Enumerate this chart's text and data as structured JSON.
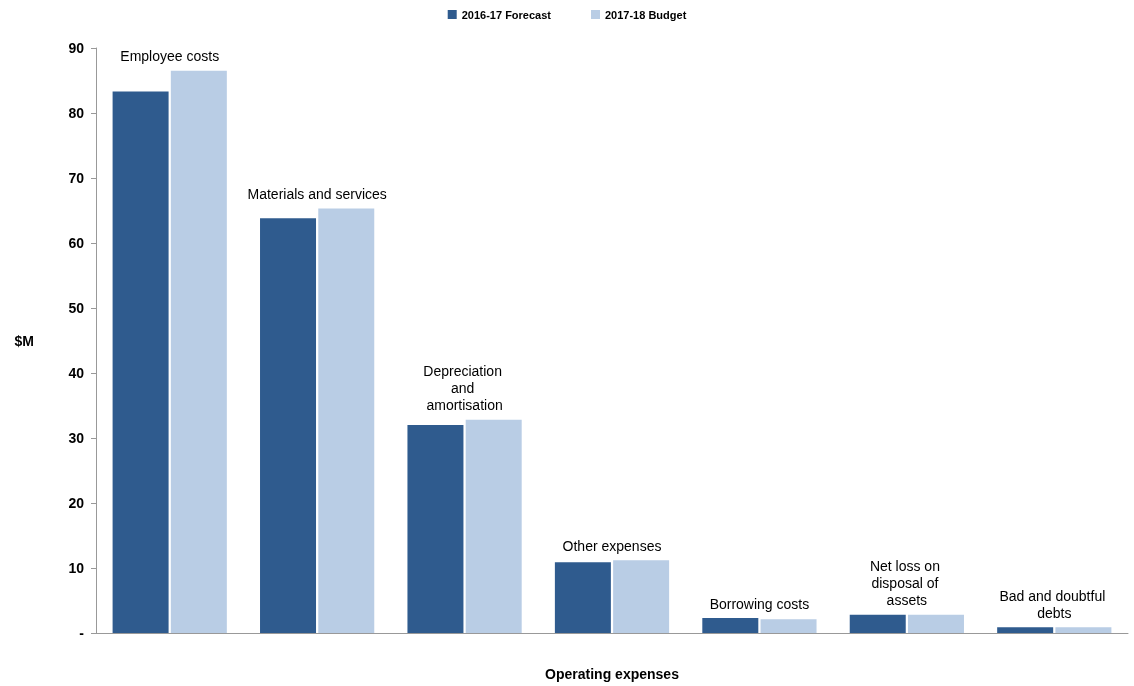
{
  "chart_data": {
    "type": "bar",
    "xlabel": "Operating expenses",
    "ylabel": "$M",
    "categories": [
      "Employee costs",
      "Materials and services",
      "Depreciation and amortisation",
      "Other expenses",
      "Borrowing costs",
      "Net loss on disposal of assets",
      "Bad and doubtful debts"
    ],
    "series": [
      {
        "name": "2016-17 Forecast",
        "color": "#2f5b8e",
        "values": [
          83.3,
          63.8,
          32.0,
          10.9,
          2.3,
          2.8,
          0.9
        ]
      },
      {
        "name": "2017-18 Budget",
        "color": "#b9cde5",
        "values": [
          86.5,
          65.3,
          32.8,
          11.2,
          2.1,
          2.8,
          0.9
        ]
      }
    ],
    "ylim": [
      0,
      90
    ],
    "yticks": [
      {
        "value": 0,
        "label": "-"
      },
      10,
      20,
      30,
      40,
      50,
      60,
      70,
      80,
      90
    ],
    "grid": false,
    "legend": "top",
    "tick_labels": "y"
  }
}
